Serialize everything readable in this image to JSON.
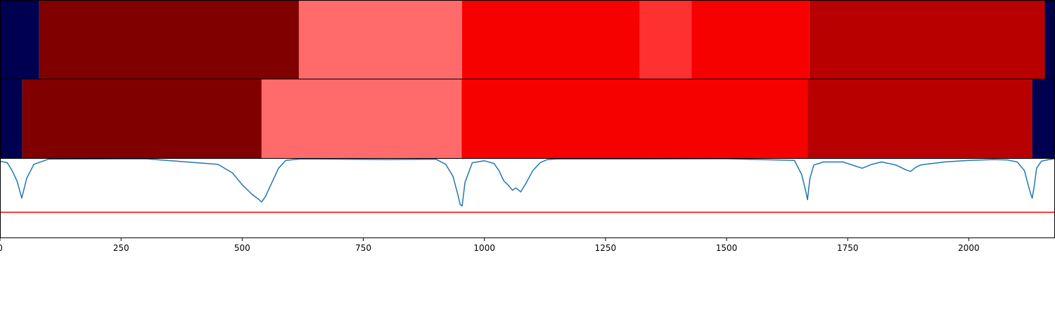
{
  "chart_data": {
    "type": "heatmap",
    "xlim": [
      0,
      2178
    ],
    "xticks": [
      0,
      250,
      500,
      750,
      1000,
      1250,
      1500,
      1750,
      2000
    ],
    "xtick_labels": [
      "0",
      "250",
      "500",
      "750",
      "1000",
      "1250",
      "1500",
      "1750",
      "2000"
    ],
    "grid": false,
    "legend": "none",
    "colors": {
      "background": "#000050",
      "line": "#1f77b4",
      "threshold": "#ff0000",
      "axis": "#000000"
    },
    "segment_rows": [
      {
        "segments": [
          {
            "start": 0,
            "end": 81,
            "color": "#000050"
          },
          {
            "start": 81,
            "end": 617,
            "color": "#800000"
          },
          {
            "start": 617,
            "end": 954,
            "color": "#ff6a6a"
          },
          {
            "start": 954,
            "end": 1321,
            "color": "#f60000"
          },
          {
            "start": 1321,
            "end": 1428,
            "color": "#ff3030"
          },
          {
            "start": 1428,
            "end": 1671,
            "color": "#f60000"
          },
          {
            "start": 1671,
            "end": 2157,
            "color": "#b90000"
          },
          {
            "start": 2157,
            "end": 2178,
            "color": "#000050"
          }
        ]
      },
      {
        "segments": [
          {
            "start": 0,
            "end": 46,
            "color": "#000050"
          },
          {
            "start": 46,
            "end": 540,
            "color": "#800000"
          },
          {
            "start": 540,
            "end": 953,
            "color": "#ff6a6a"
          },
          {
            "start": 953,
            "end": 1667,
            "color": "#f60000"
          },
          {
            "start": 1667,
            "end": 2131,
            "color": "#b90000"
          },
          {
            "start": 2131,
            "end": 2178,
            "color": "#000050"
          }
        ]
      }
    ],
    "score_panel": {
      "ylim": [
        0,
        1
      ],
      "threshold": 0.32,
      "x": [
        0,
        15,
        25,
        35,
        45,
        55,
        70,
        100,
        200,
        300,
        450,
        480,
        500,
        520,
        535,
        540,
        548,
        560,
        575,
        590,
        620,
        700,
        800,
        900,
        920,
        935,
        945,
        950,
        954,
        960,
        975,
        1000,
        1020,
        1030,
        1040,
        1050,
        1058,
        1065,
        1075,
        1085,
        1100,
        1115,
        1130,
        1150,
        1300,
        1500,
        1640,
        1655,
        1663,
        1667,
        1672,
        1680,
        1700,
        1740,
        1780,
        1800,
        1820,
        1850,
        1870,
        1880,
        1890,
        1900,
        1910,
        1950,
        2000,
        2050,
        2080,
        2100,
        2115,
        2122,
        2128,
        2131,
        2135,
        2140,
        2150,
        2165,
        2178
      ],
      "y": [
        0.97,
        0.95,
        0.85,
        0.72,
        0.5,
        0.75,
        0.93,
        0.995,
        0.998,
        1.0,
        0.93,
        0.82,
        0.67,
        0.55,
        0.48,
        0.45,
        0.52,
        0.68,
        0.88,
        0.98,
        0.998,
        0.995,
        0.99,
        0.995,
        0.93,
        0.78,
        0.55,
        0.42,
        0.4,
        0.7,
        0.95,
        0.975,
        0.94,
        0.85,
        0.72,
        0.66,
        0.6,
        0.63,
        0.58,
        0.68,
        0.85,
        0.95,
        0.99,
        0.998,
        0.998,
        1.0,
        0.98,
        0.8,
        0.6,
        0.48,
        0.75,
        0.92,
        0.96,
        0.96,
        0.88,
        0.93,
        0.96,
        0.92,
        0.86,
        0.84,
        0.89,
        0.92,
        0.93,
        0.96,
        0.98,
        0.99,
        0.985,
        0.96,
        0.85,
        0.68,
        0.55,
        0.5,
        0.65,
        0.88,
        0.97,
        0.99,
        1.0
      ]
    }
  }
}
